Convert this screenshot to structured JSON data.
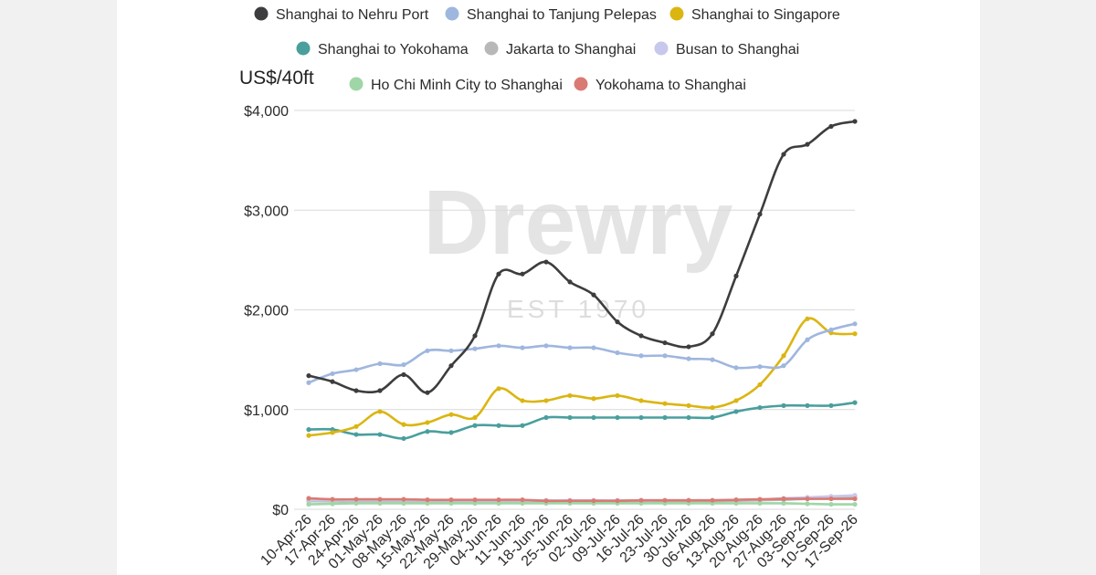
{
  "watermark": {
    "brand": "Drewry",
    "tagline": "EST 1970"
  },
  "chart_data": {
    "type": "line",
    "ylabel": "US$/40ft",
    "ylim": [
      0,
      4000
    ],
    "yticks": [
      0,
      1000,
      2000,
      3000,
      4000
    ],
    "ytick_labels": [
      "$0",
      "$1,000",
      "$2,000",
      "$3,000",
      "$4,000"
    ],
    "grid": true,
    "legend_position": "top",
    "categories": [
      "10-Apr-26",
      "17-Apr-26",
      "24-Apr-26",
      "01-May-26",
      "08-May-26",
      "15-May-26",
      "22-May-26",
      "29-May-26",
      "04-Jun-26",
      "11-Jun-26",
      "18-Jun-26",
      "25-Jun-26",
      "02-Jul-26",
      "09-Jul-26",
      "16-Jul-26",
      "23-Jul-26",
      "30-Jul-26",
      "06-Aug-26",
      "13-Aug-26",
      "20-Aug-26",
      "27-Aug-26",
      "03-Sep-26",
      "10-Sep-26",
      "17-Sep-26"
    ],
    "series": [
      {
        "name": "Shanghai to Nehru Port",
        "color": "#3d3d3f",
        "values": [
          1340,
          1280,
          1190,
          1190,
          1350,
          1170,
          1440,
          1740,
          2360,
          2360,
          2480,
          2280,
          2150,
          1880,
          1740,
          1670,
          1630,
          1760,
          2340,
          2960,
          3560,
          3660,
          3840,
          3890
        ]
      },
      {
        "name": "Shanghai to Tanjung Pelepas",
        "color": "#9fb6de",
        "values": [
          1270,
          1360,
          1400,
          1460,
          1450,
          1590,
          1590,
          1610,
          1640,
          1620,
          1640,
          1620,
          1620,
          1570,
          1540,
          1540,
          1510,
          1500,
          1420,
          1430,
          1440,
          1700,
          1800,
          1860
        ]
      },
      {
        "name": "Shanghai to Singapore",
        "color": "#dbb511",
        "values": [
          740,
          770,
          830,
          980,
          850,
          870,
          950,
          920,
          1210,
          1090,
          1090,
          1140,
          1110,
          1140,
          1090,
          1060,
          1040,
          1020,
          1090,
          1250,
          1540,
          1910,
          1770,
          1760
        ]
      },
      {
        "name": "Shanghai to Yokohama",
        "color": "#4a9f9d",
        "values": [
          800,
          800,
          750,
          750,
          710,
          780,
          770,
          840,
          840,
          840,
          920,
          920,
          920,
          920,
          920,
          920,
          920,
          920,
          980,
          1020,
          1040,
          1040,
          1040,
          1070
        ]
      },
      {
        "name": "Jakarta to Shanghai",
        "color": "#b8b8b8",
        "values": [
          80,
          80,
          80,
          80,
          80,
          80,
          80,
          80,
          80,
          80,
          80,
          80,
          80,
          80,
          80,
          80,
          80,
          80,
          85,
          90,
          95,
          105,
          110,
          120
        ]
      },
      {
        "name": "Busan to Shanghai",
        "color": "#c8c8ec",
        "values": [
          90,
          90,
          90,
          90,
          90,
          90,
          90,
          90,
          90,
          90,
          90,
          90,
          90,
          90,
          90,
          90,
          90,
          90,
          95,
          100,
          110,
          120,
          130,
          140
        ]
      },
      {
        "name": "Ho Chi Minh City to Shanghai",
        "color": "#9fd6a7",
        "values": [
          50,
          55,
          60,
          60,
          60,
          60,
          60,
          60,
          60,
          60,
          60,
          60,
          60,
          60,
          60,
          60,
          60,
          60,
          60,
          60,
          60,
          55,
          50,
          50
        ]
      },
      {
        "name": "Yokohama to Shanghai",
        "color": "#d97b73",
        "values": [
          110,
          100,
          100,
          100,
          100,
          95,
          95,
          95,
          95,
          95,
          85,
          85,
          85,
          85,
          90,
          90,
          90,
          90,
          95,
          100,
          105,
          105,
          105,
          105
        ]
      }
    ]
  }
}
